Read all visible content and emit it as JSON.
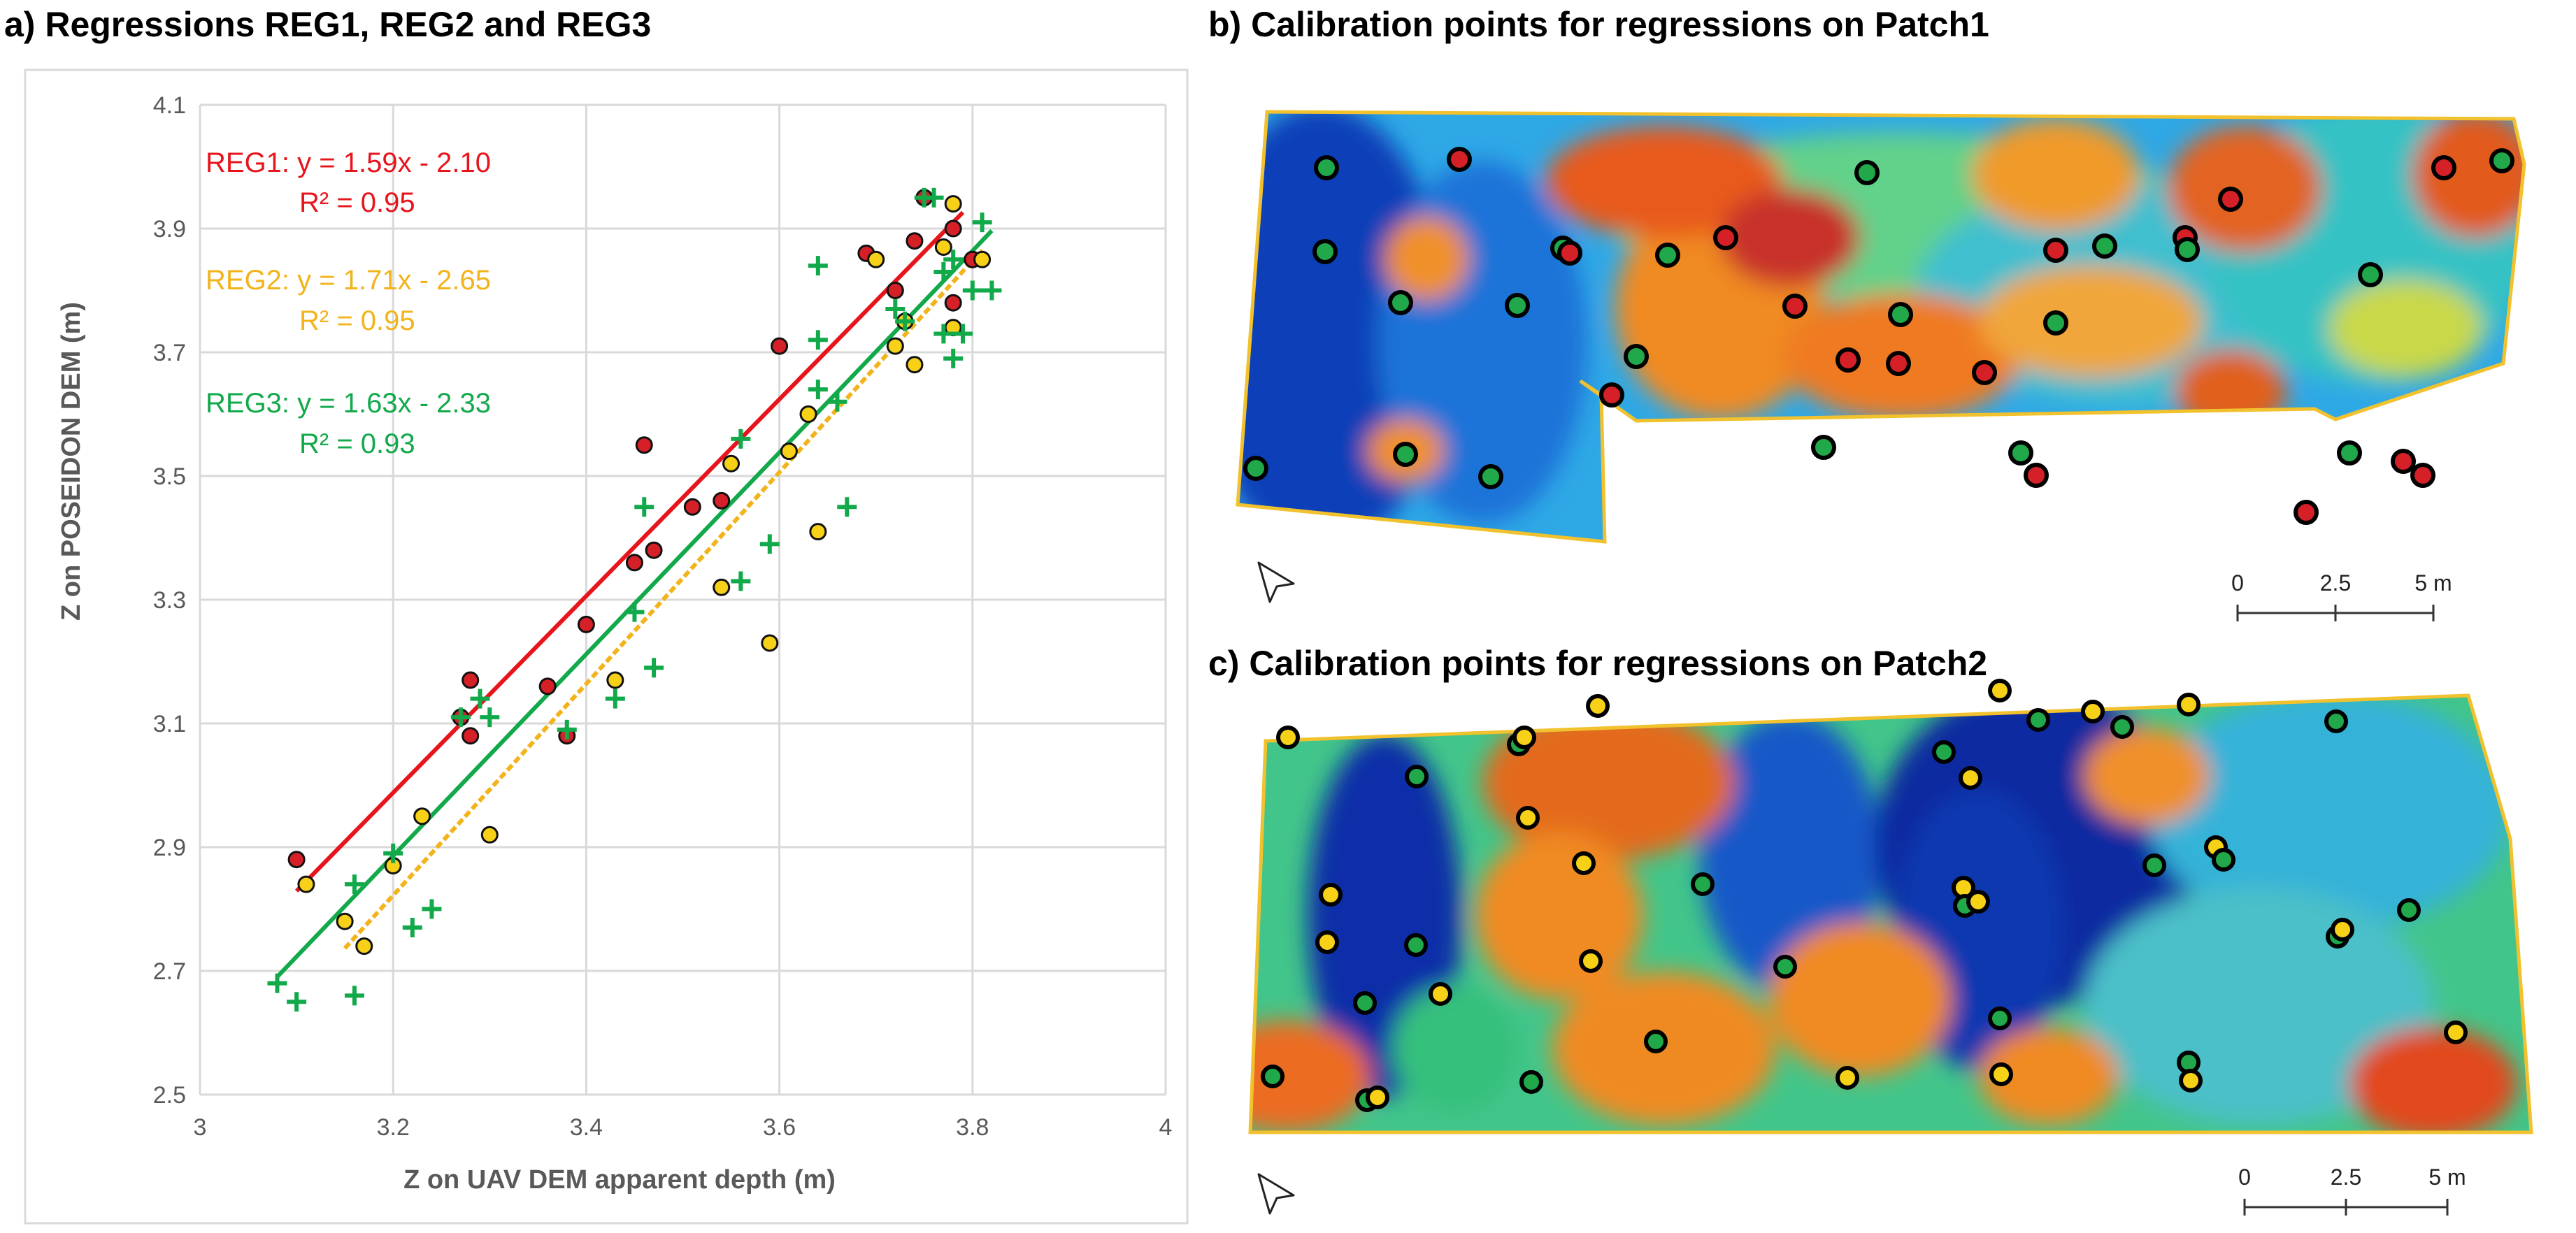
{
  "panel_a": {
    "title": "a) Regressions REG1, REG2 and REG3"
  },
  "panel_b": {
    "title": "b) Calibration points for regressions on Patch1",
    "scale": {
      "labels": [
        "0",
        "2.5",
        "5 m"
      ]
    }
  },
  "panel_c": {
    "title": "c) Calibration points for regressions on Patch2",
    "scale": {
      "labels": [
        "0",
        "2.5",
        "5 m"
      ]
    }
  },
  "colors": {
    "reg1": "#e8141c",
    "reg2": "#f2b31b",
    "reg3": "#12a94b",
    "red_point": "#d62027",
    "yellow_point": "#f7d117",
    "green_point": "#20a84a"
  },
  "chart_data": {
    "type": "scatter",
    "xlabel": "Z on UAV DEM apparent depth (m)",
    "ylabel": "Z on POSEIDON DEM (m)",
    "xlim": [
      3,
      4
    ],
    "ylim": [
      2.5,
      4.1
    ],
    "xticks": [
      "3",
      "3.2",
      "3.4",
      "3.6",
      "3.8",
      "4"
    ],
    "yticks": [
      "2.5",
      "2.7",
      "2.9",
      "3.1",
      "3.3",
      "3.5",
      "3.7",
      "3.9",
      "4.1"
    ],
    "grid": true,
    "annotations": [
      {
        "series": "REG1",
        "line1": "REG1: y = 1.59x - 2.10",
        "line2": "R² = 0.95"
      },
      {
        "series": "REG2",
        "line1": "REG2: y = 1.71x - 2.65",
        "line2": "R² = 0.95"
      },
      {
        "series": "REG3",
        "line1": "REG3: y = 1.63x - 2.33",
        "line2": "R² = 0.93"
      }
    ],
    "regressions": [
      {
        "name": "REG1",
        "slope": 1.59,
        "intercept": -2.1,
        "x_range": [
          3.1,
          3.79
        ],
        "style": "solid"
      },
      {
        "name": "REG2",
        "slope": 1.71,
        "intercept": -2.65,
        "x_range": [
          3.15,
          3.81
        ],
        "style": "dashed"
      },
      {
        "name": "REG3",
        "slope": 1.63,
        "intercept": -2.33,
        "x_range": [
          3.08,
          3.82
        ],
        "style": "solid"
      }
    ],
    "series": [
      {
        "name": "REG1 points",
        "marker": "circle-red",
        "points": [
          [
            3.1,
            2.88
          ],
          [
            3.27,
            3.11
          ],
          [
            3.28,
            3.17
          ],
          [
            3.28,
            3.08
          ],
          [
            3.36,
            3.16
          ],
          [
            3.38,
            3.08
          ],
          [
            3.4,
            3.26
          ],
          [
            3.46,
            3.55
          ],
          [
            3.45,
            3.36
          ],
          [
            3.47,
            3.38
          ],
          [
            3.51,
            3.45
          ],
          [
            3.54,
            3.46
          ],
          [
            3.6,
            3.71
          ],
          [
            3.69,
            3.86
          ],
          [
            3.72,
            3.8
          ],
          [
            3.74,
            3.88
          ],
          [
            3.75,
            3.95
          ],
          [
            3.78,
            3.78
          ],
          [
            3.78,
            3.9
          ],
          [
            3.8,
            3.85
          ]
        ]
      },
      {
        "name": "REG2 points",
        "marker": "circle-yellow",
        "points": [
          [
            3.11,
            2.84
          ],
          [
            3.15,
            2.78
          ],
          [
            3.17,
            2.74
          ],
          [
            3.2,
            2.87
          ],
          [
            3.23,
            2.95
          ],
          [
            3.3,
            2.92
          ],
          [
            3.43,
            3.17
          ],
          [
            3.54,
            3.32
          ],
          [
            3.55,
            3.52
          ],
          [
            3.59,
            3.23
          ],
          [
            3.61,
            3.54
          ],
          [
            3.63,
            3.6
          ],
          [
            3.64,
            3.41
          ],
          [
            3.7,
            3.85
          ],
          [
            3.72,
            3.71
          ],
          [
            3.73,
            3.75
          ],
          [
            3.74,
            3.68
          ],
          [
            3.77,
            3.87
          ],
          [
            3.78,
            3.94
          ],
          [
            3.78,
            3.74
          ],
          [
            3.81,
            3.85
          ]
        ]
      },
      {
        "name": "REG3 points",
        "marker": "cross-green",
        "points": [
          [
            3.08,
            2.68
          ],
          [
            3.1,
            2.65
          ],
          [
            3.16,
            2.66
          ],
          [
            3.16,
            2.84
          ],
          [
            3.2,
            2.89
          ],
          [
            3.22,
            2.77
          ],
          [
            3.24,
            2.8
          ],
          [
            3.27,
            3.11
          ],
          [
            3.29,
            3.14
          ],
          [
            3.3,
            3.11
          ],
          [
            3.38,
            3.09
          ],
          [
            3.43,
            3.14
          ],
          [
            3.45,
            3.28
          ],
          [
            3.46,
            3.45
          ],
          [
            3.47,
            3.19
          ],
          [
            3.56,
            3.33
          ],
          [
            3.56,
            3.56
          ],
          [
            3.59,
            3.39
          ],
          [
            3.64,
            3.84
          ],
          [
            3.64,
            3.72
          ],
          [
            3.64,
            3.64
          ],
          [
            3.66,
            3.62
          ],
          [
            3.67,
            3.45
          ],
          [
            3.72,
            3.77
          ],
          [
            3.73,
            3.75
          ],
          [
            3.75,
            3.95
          ],
          [
            3.76,
            3.95
          ],
          [
            3.77,
            3.83
          ],
          [
            3.77,
            3.73
          ],
          [
            3.78,
            3.85
          ],
          [
            3.78,
            3.69
          ],
          [
            3.79,
            3.73
          ],
          [
            3.8,
            3.8
          ],
          [
            3.81,
            3.91
          ],
          [
            3.82,
            3.8
          ]
        ]
      }
    ]
  }
}
